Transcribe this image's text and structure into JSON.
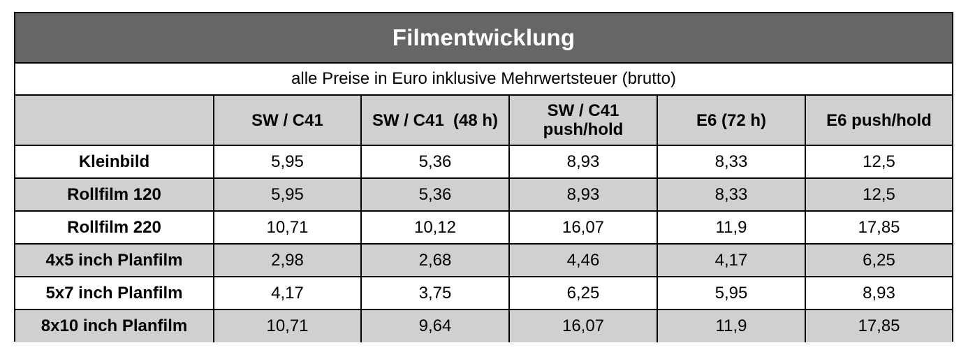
{
  "table": {
    "title": "Filmentwicklung",
    "subtitle": "alle Preise in Euro inklusive Mehrwertsteuer (brutto)",
    "header_fill": "#666666",
    "stripe_fill": "#d0d0d0",
    "columns": {
      "corner": "",
      "sw_c41": "SW / C41",
      "sw_c41_48h": "SW / C41  (48 h)",
      "sw_c41_push_line1": "SW / C41",
      "sw_c41_push_line2": "push/hold",
      "e6_72h": "E6 (72 h)",
      "e6_push": "E6 push/hold"
    },
    "rows": [
      {
        "label": "Kleinbild",
        "values": [
          "5,95",
          "5,36",
          "8,93",
          "8,33",
          "12,5"
        ]
      },
      {
        "label": "Rollfilm 120",
        "values": [
          "5,95",
          "5,36",
          "8,93",
          "8,33",
          "12,5"
        ]
      },
      {
        "label": "Rollfilm 220",
        "values": [
          "10,71",
          "10,12",
          "16,07",
          "11,9",
          "17,85"
        ]
      },
      {
        "label": "4x5 inch Planfilm",
        "values": [
          "2,98",
          "2,68",
          "4,46",
          "4,17",
          "6,25"
        ]
      },
      {
        "label": "5x7 inch Planfilm",
        "values": [
          "4,17",
          "3,75",
          "6,25",
          "5,95",
          "8,93"
        ]
      },
      {
        "label": "8x10 inch Planfilm",
        "values": [
          "10,71",
          "9,64",
          "16,07",
          "11,9",
          "17,85"
        ]
      }
    ]
  }
}
